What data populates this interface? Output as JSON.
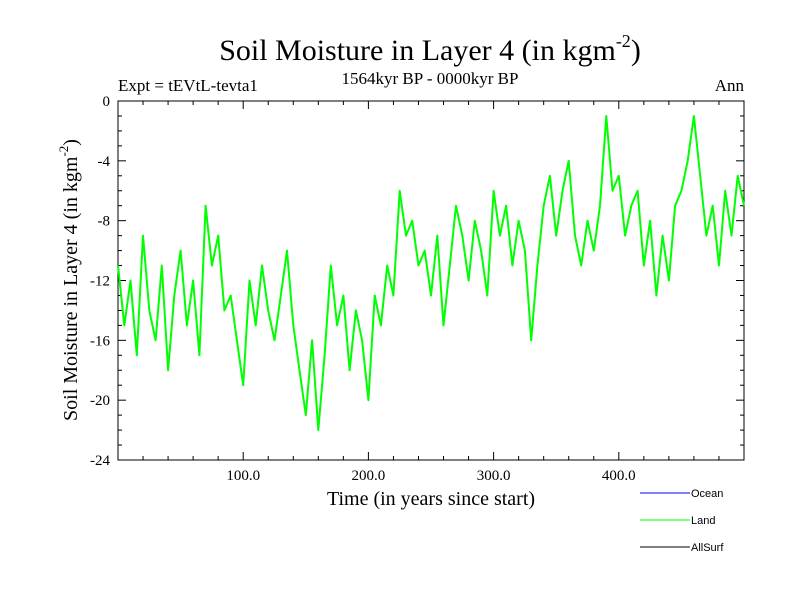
{
  "chart_data": {
    "type": "line",
    "title": "Soil Moisture in Layer 4 (in kgm",
    "title_superscript": "-2",
    "title_close": ")",
    "subtitle": "1564kyr BP - 0000kyr BP",
    "experiment_label": "Expt = tEVtL-tevta1",
    "season_label": "Ann",
    "xlabel": "Time (in years since start)",
    "ylabel": "Soil Moisture in Layer 4 (in kgm",
    "ylabel_superscript": "-2",
    "ylabel_close": ")",
    "xlim": [
      0,
      500
    ],
    "ylim": [
      -24,
      0
    ],
    "xticks": [
      100,
      200,
      300,
      400
    ],
    "xtick_labels": [
      "100.0",
      "200.0",
      "300.0",
      "400.0"
    ],
    "yticks": [
      0,
      -4,
      -8,
      -12,
      -16,
      -20,
      -24
    ],
    "ytick_labels": [
      "0",
      "-4",
      "-8",
      "-12",
      "-16",
      "-20",
      "-24"
    ],
    "legend": [
      {
        "name": "Ocean",
        "color": "#0000ff"
      },
      {
        "name": "Land",
        "color": "#00ff00"
      },
      {
        "name": "AllSurf",
        "color": "#000000"
      }
    ],
    "series": [
      {
        "name": "Land",
        "color": "#00ff00",
        "x": [
          0,
          5,
          10,
          15,
          20,
          25,
          30,
          35,
          40,
          45,
          50,
          55,
          60,
          65,
          70,
          75,
          80,
          85,
          90,
          95,
          100,
          105,
          110,
          115,
          120,
          125,
          130,
          135,
          140,
          145,
          150,
          155,
          160,
          165,
          170,
          175,
          180,
          185,
          190,
          195,
          200,
          205,
          210,
          215,
          220,
          225,
          230,
          235,
          240,
          245,
          250,
          255,
          260,
          265,
          270,
          275,
          280,
          285,
          290,
          295,
          300,
          305,
          310,
          315,
          320,
          325,
          330,
          335,
          340,
          345,
          350,
          355,
          360,
          365,
          370,
          375,
          380,
          385,
          390,
          395,
          400,
          405,
          410,
          415,
          420,
          425,
          430,
          435,
          440,
          445,
          450,
          455,
          460,
          465,
          470,
          475,
          480,
          485,
          490,
          495,
          500
        ],
        "values": [
          -11,
          -15,
          -12,
          -17,
          -9,
          -14,
          -16,
          -11,
          -18,
          -13,
          -10,
          -15,
          -12,
          -17,
          -7,
          -11,
          -9,
          -14,
          -13,
          -16,
          -19,
          -12,
          -15,
          -11,
          -14,
          -16,
          -13,
          -10,
          -15,
          -18,
          -21,
          -16,
          -22,
          -17,
          -11,
          -15,
          -13,
          -18,
          -14,
          -16,
          -20,
          -13,
          -15,
          -11,
          -13,
          -6,
          -9,
          -8,
          -11,
          -10,
          -13,
          -9,
          -15,
          -11,
          -7,
          -9,
          -12,
          -8,
          -10,
          -13,
          -6,
          -9,
          -7,
          -11,
          -8,
          -10,
          -16,
          -11,
          -7,
          -5,
          -9,
          -6,
          -4,
          -9,
          -11,
          -8,
          -10,
          -7,
          -1,
          -6,
          -5,
          -9,
          -7,
          -6,
          -11,
          -8,
          -13,
          -9,
          -12,
          -7,
          -6,
          -4,
          -1,
          -5,
          -9,
          -7,
          -11,
          -6,
          -9,
          -5,
          -7
        ]
      }
    ]
  }
}
